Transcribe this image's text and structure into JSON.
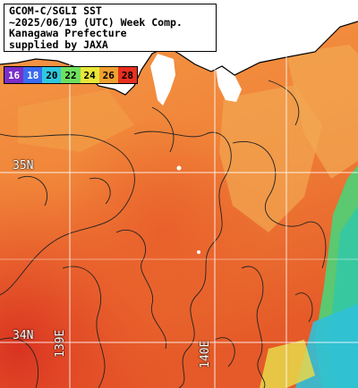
{
  "info": {
    "line1": "GCOM-C/SGLI SST",
    "line2": "~2025/06/19 (UTC) Week Comp.",
    "line3": "Kanagawa Prefecture",
    "line4": "supplied by JAXA"
  },
  "legend": {
    "labels": [
      "16",
      "18",
      "20",
      "22",
      "24",
      "26",
      "28"
    ],
    "colors": [
      "#7a2fc8",
      "#3a6cf0",
      "#2fc8e0",
      "#6fe060",
      "#e8e838",
      "#f0a030",
      "#e83020"
    ]
  },
  "grid_labels": {
    "lat_35": "35N",
    "lat_34": "34N",
    "lon_139": "139E",
    "lon_140": "140E"
  },
  "colors": {
    "land": "#ffffff",
    "sea_warm": "#e85a28",
    "sea_mid": "#f08038",
    "sea_cool": "#f0a048",
    "sea_cold": "#3cc878",
    "coast_line": "#000000",
    "grid_line": "#ffffff"
  }
}
